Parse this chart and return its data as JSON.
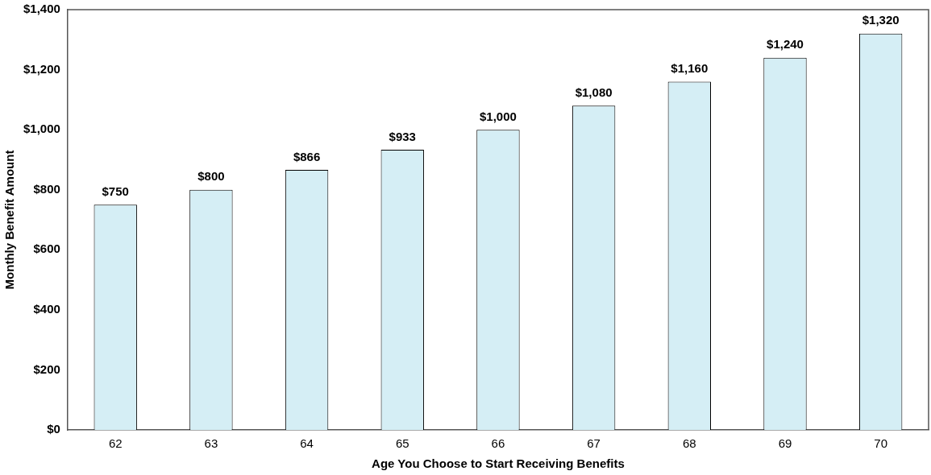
{
  "chart_data": {
    "type": "bar",
    "xlabel": "Age You Choose to Start Receiving Benefits",
    "ylabel": "Monthly Benefit Amount",
    "categories": [
      "62",
      "63",
      "64",
      "65",
      "66",
      "67",
      "68",
      "69",
      "70"
    ],
    "values": [
      750,
      800,
      866,
      933,
      1000,
      1080,
      1160,
      1240,
      1320
    ],
    "value_labels": [
      "$750",
      "$800",
      "$866",
      "$933",
      "$1,000",
      "$1,080",
      "$1,160",
      "$1,240",
      "$1,320"
    ],
    "color": "#d5eef5",
    "ylim": [
      0,
      1400
    ],
    "yticks": [
      {
        "value": 0,
        "label": "$0"
      },
      {
        "value": 200,
        "label": "$200"
      },
      {
        "value": 400,
        "label": "$400"
      },
      {
        "value": 600,
        "label": "$600"
      },
      {
        "value": 800,
        "label": "$800"
      },
      {
        "value": 1000,
        "label": "$1,000"
      },
      {
        "value": 1200,
        "label": "$1,200"
      },
      {
        "value": 1400,
        "label": "$1,400"
      }
    ],
    "grid": false,
    "legend": false
  }
}
